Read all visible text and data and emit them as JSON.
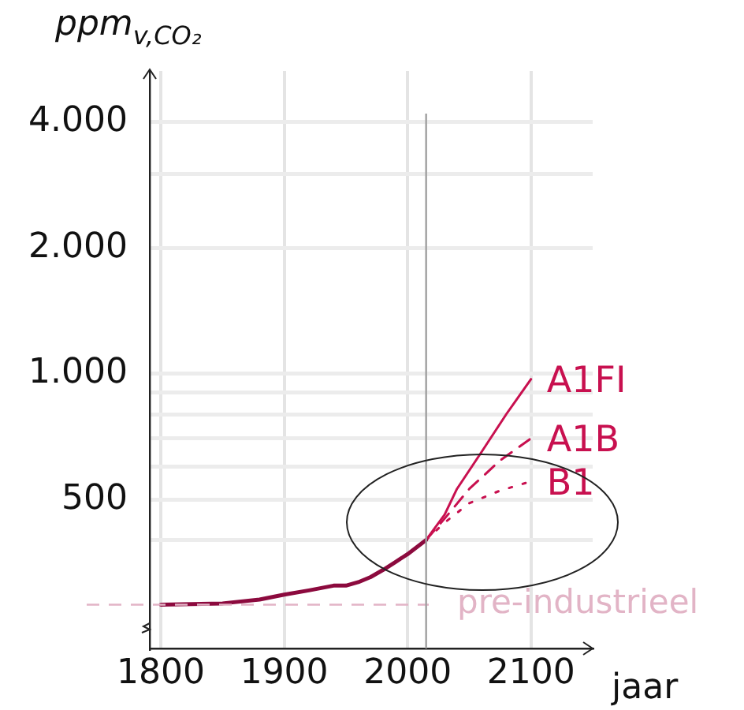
{
  "chart_data": {
    "type": "line",
    "xlabel": "jaar",
    "ylabel": "ppm$_{v,CO₂}$",
    "log": "y",
    "grid": true,
    "legend": false,
    "marker": "none",
    "xlim": [
      1791,
      2150
    ],
    "xticks": [
      1800,
      1900,
      2000,
      2100
    ],
    "ylim": [
      220,
      5300
    ],
    "yticks": [
      {
        "value": 400,
        "label": null
      },
      500,
      {
        "value": 600,
        "label": null
      },
      {
        "value": 700,
        "label": null
      },
      {
        "value": 800,
        "label": null
      },
      {
        "value": 900,
        "label": null
      },
      {
        "value": 1000,
        "label": "1.000"
      },
      {
        "value": 2000,
        "label": "2.000"
      },
      {
        "value": 3000,
        "label": null
      },
      {
        "value": 4000,
        "label": "4.000"
      }
    ],
    "ref_lines": [
      {
        "axis": "y",
        "value": 280,
        "label": "pre-industrieel",
        "color": "#e2b4c6",
        "line_style": "dashed"
      },
      {
        "axis": "x",
        "value": 2015,
        "label": null,
        "color": "#a0a0a0",
        "line_style": "solid"
      }
    ],
    "series": [
      {
        "color": "#8c0a3e",
        "line_style": "solid",
        "x": [
          1800,
          1850,
          1880,
          1900,
          1920,
          1940,
          1950,
          1960,
          1970,
          1980,
          1990,
          2000,
          2015
        ],
        "values": [
          280,
          282,
          288,
          296,
          303,
          311,
          311,
          317,
          326,
          339,
          354,
          370,
          400
        ]
      },
      {
        "name": "A1FI",
        "color": "#c8104f",
        "line_style": "solid",
        "x": [
          2015,
          2030,
          2040,
          2060,
          2080,
          2100
        ],
        "values": [
          400,
          460,
          530,
          650,
          800,
          970
        ]
      },
      {
        "name": "A1B",
        "color": "#c8104f",
        "line_style": "dashed",
        "x": [
          2015,
          2030,
          2050,
          2075,
          2100
        ],
        "values": [
          400,
          450,
          530,
          620,
          700
        ]
      },
      {
        "name": "B1",
        "color": "#c8104f",
        "line_style": "dotted",
        "x": [
          2015,
          2030,
          2050,
          2075,
          2098
        ],
        "values": [
          400,
          440,
          490,
          525,
          550
        ]
      }
    ]
  }
}
